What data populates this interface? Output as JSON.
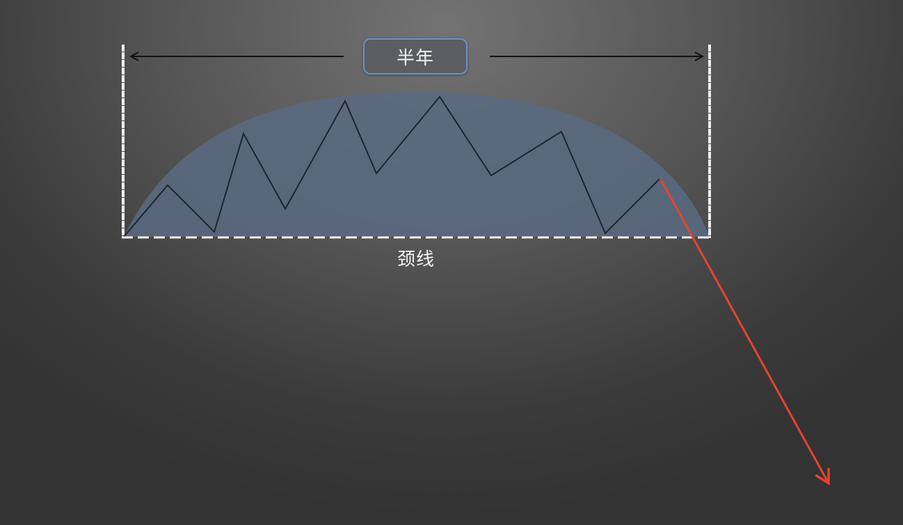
{
  "duration_label": "半年",
  "neckline_label": "颈线",
  "colors": {
    "dome_fill": "#5a6a80",
    "price_line": "#1b2533",
    "breakdown_arrow": "#e8432e",
    "boundary": "#f0f0f0",
    "span_arrow": "#111111",
    "label_border": "#6d8fc9"
  }
}
